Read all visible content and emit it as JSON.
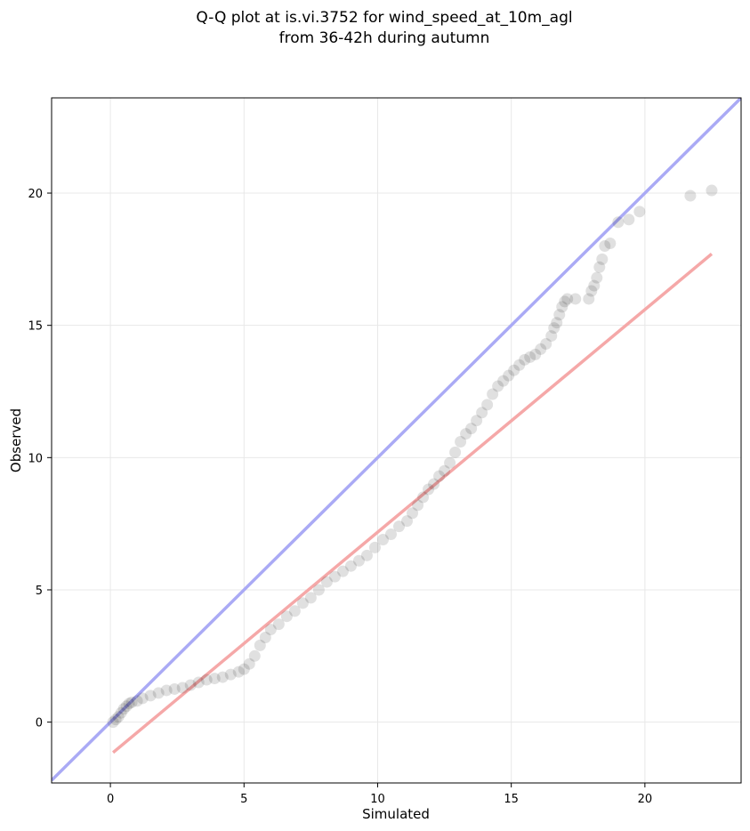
{
  "chart_data": {
    "type": "scatter",
    "title": "Q-Q plot at is.vi.3752 for wind_speed_at_10m_agl",
    "subtitle": "from 36-42h during autumn",
    "xlabel": "Simulated",
    "ylabel": "Observed",
    "xlim": [
      -2.2,
      23.6
    ],
    "ylim": [
      -2.3,
      23.6
    ],
    "xticks": [
      0,
      5,
      10,
      15,
      20
    ],
    "yticks": [
      0,
      5,
      10,
      15,
      20
    ],
    "grid": true,
    "colors": {
      "identity_line": "#aaaaf5",
      "fit_line": "#f5a8a8",
      "points": "#000000",
      "frame": "#000000"
    },
    "series": [
      {
        "kind": "line",
        "role": "identity",
        "x": [
          -2.2,
          23.6
        ],
        "y": [
          -2.2,
          23.6
        ]
      },
      {
        "kind": "line",
        "role": "fit",
        "x": [
          0.1,
          22.5
        ],
        "y": [
          -1.15,
          17.7
        ]
      },
      {
        "kind": "scatter",
        "role": "quantiles",
        "x": [
          0.1,
          0.2,
          0.3,
          0.4,
          0.5,
          0.6,
          0.7,
          0.8,
          1.0,
          1.2,
          1.5,
          1.8,
          2.1,
          2.4,
          2.7,
          3.0,
          3.3,
          3.6,
          3.9,
          4.2,
          4.5,
          4.8,
          5.0,
          5.2,
          5.4,
          5.6,
          5.8,
          6.0,
          6.3,
          6.6,
          6.9,
          7.2,
          7.5,
          7.8,
          8.1,
          8.4,
          8.7,
          9.0,
          9.3,
          9.6,
          9.9,
          10.2,
          10.5,
          10.8,
          11.1,
          11.3,
          11.5,
          11.7,
          11.9,
          12.1,
          12.3,
          12.5,
          12.7,
          12.9,
          13.1,
          13.3,
          13.5,
          13.7,
          13.9,
          14.1,
          14.3,
          14.5,
          14.7,
          14.9,
          15.1,
          15.3,
          15.5,
          15.7,
          15.9,
          16.1,
          16.3,
          16.5,
          16.6,
          16.7,
          16.8,
          16.9,
          17.0,
          17.1,
          17.4,
          17.9,
          18.0,
          18.1,
          18.2,
          18.3,
          18.4,
          18.5,
          18.7,
          19.0,
          19.4,
          19.8,
          21.7,
          22.5
        ],
        "y": [
          0.0,
          0.1,
          0.2,
          0.35,
          0.5,
          0.6,
          0.7,
          0.75,
          0.8,
          0.9,
          1.0,
          1.1,
          1.2,
          1.25,
          1.3,
          1.4,
          1.5,
          1.6,
          1.65,
          1.7,
          1.8,
          1.9,
          2.0,
          2.2,
          2.5,
          2.9,
          3.2,
          3.5,
          3.7,
          4.0,
          4.2,
          4.5,
          4.7,
          5.0,
          5.3,
          5.5,
          5.7,
          5.9,
          6.1,
          6.3,
          6.6,
          6.9,
          7.1,
          7.4,
          7.6,
          7.9,
          8.2,
          8.5,
          8.8,
          9.0,
          9.3,
          9.5,
          9.8,
          10.2,
          10.6,
          10.9,
          11.1,
          11.4,
          11.7,
          12.0,
          12.4,
          12.7,
          12.9,
          13.1,
          13.3,
          13.5,
          13.7,
          13.8,
          13.9,
          14.1,
          14.3,
          14.6,
          14.9,
          15.1,
          15.4,
          15.7,
          15.9,
          16.0,
          16.0,
          16.0,
          16.3,
          16.5,
          16.8,
          17.2,
          17.5,
          18.0,
          18.1,
          18.9,
          19.0,
          19.3,
          19.9,
          20.1
        ]
      }
    ]
  }
}
